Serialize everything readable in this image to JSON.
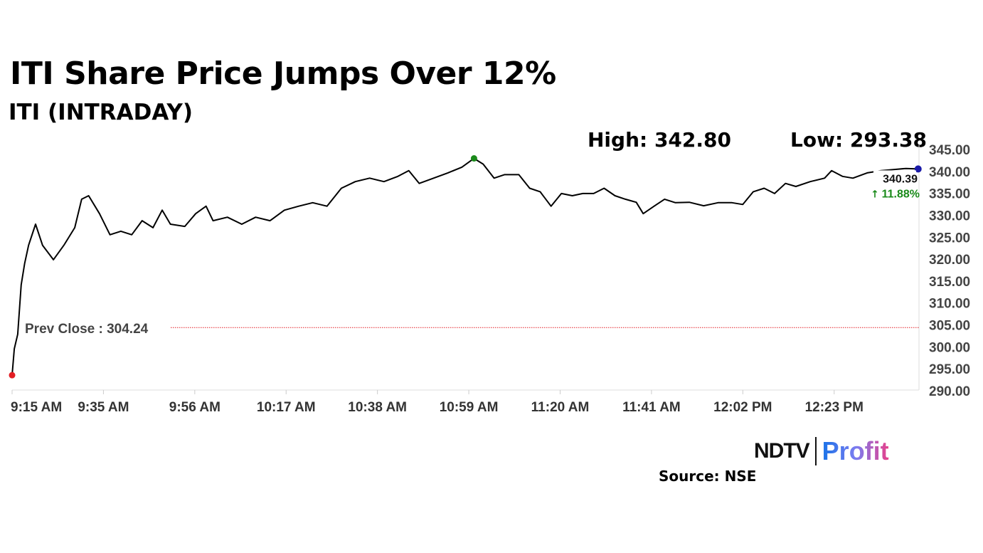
{
  "header": {
    "title": "ITI Share Price Jumps Over 12%",
    "subtitle": "ITI (INTRADAY)",
    "high_label": "High: 342.80",
    "low_label": "Low: 293.38"
  },
  "footer": {
    "source": "Source: NSE",
    "logo_ndtv": "NDTV",
    "logo_profit": "Profit"
  },
  "chart_data": {
    "type": "line",
    "title": "ITI (INTRADAY)",
    "x_unit": "minutes since 9:15 AM",
    "xlim": [
      0,
      208.5
    ],
    "ylim": [
      290,
      345
    ],
    "x_ticks": [
      0,
      21,
      42,
      63,
      84,
      105,
      126,
      147,
      168,
      189
    ],
    "x_tick_labels": [
      "9:15 AM",
      "9:35 AM",
      "9:56 AM",
      "10:17 AM",
      "10:38 AM",
      "10:59 AM",
      "11:20 AM",
      "11:41 AM",
      "12:02 PM",
      "12:23 PM"
    ],
    "y_ticks": [
      290,
      295,
      300,
      305,
      310,
      315,
      320,
      325,
      330,
      335,
      340,
      345
    ],
    "y_tick_labels": [
      "290.00",
      "295.00",
      "300.00",
      "305.00",
      "310.00",
      "315.00",
      "320.00",
      "325.00",
      "330.00",
      "335.00",
      "340.00",
      "345.00"
    ],
    "prev_close": {
      "value": 304.24,
      "label": "Prev Close : 304.24",
      "color": "#e31e24"
    },
    "high": {
      "x": 106.2,
      "value": 342.8,
      "color": "#1a8a1a"
    },
    "low": {
      "x": 0,
      "value": 293.38,
      "color": "#e31e24"
    },
    "last": {
      "x": 208.3,
      "value": 340.39,
      "label": "340.39",
      "change_label": "11.88%",
      "change_icon": "arrow-up",
      "change_color": "#1a8a1a",
      "dot_color": "#1a1aa8"
    },
    "series": [
      {
        "name": "ITI",
        "color": "#000000",
        "x": [
          0,
          0.5,
          1.3,
          2.1,
          2.9,
          3.8,
          5.4,
          7,
          9.5,
          11.9,
          14.4,
          16,
          17.6,
          20.1,
          22.5,
          25,
          27.5,
          29.9,
          32.4,
          34.5,
          36.4,
          39.7,
          42.2,
          44.6,
          46.2,
          49.5,
          52.8,
          56,
          59.3,
          62.6,
          65.9,
          69.1,
          72.4,
          75.7,
          78.9,
          82.2,
          85.5,
          88.7,
          91.2,
          93.6,
          96.9,
          100.2,
          103.4,
          106.2,
          108.3,
          110.8,
          113.2,
          116.5,
          119,
          121.4,
          123.9,
          126.3,
          128.8,
          131.2,
          133.7,
          136.1,
          138.6,
          141,
          143.5,
          145.1,
          147.6,
          150,
          152.5,
          155.7,
          159,
          162.3,
          165.5,
          168,
          170.4,
          172.9,
          175.3,
          177.8,
          180.2,
          183.5,
          186.8,
          188.4,
          190.9,
          193.3,
          196.6,
          199.8,
          203.1,
          205.5,
          208.3
        ],
        "y": [
          293.38,
          299.4,
          302.7,
          314,
          318.9,
          323,
          327.8,
          323,
          319.7,
          323,
          327,
          333.5,
          334.3,
          330.2,
          325.4,
          326.2,
          325.4,
          328.6,
          327,
          331,
          327.8,
          327.3,
          330.2,
          331.9,
          328.6,
          329.4,
          327.8,
          329.4,
          328.6,
          331,
          331.9,
          332.7,
          331.9,
          336,
          337.5,
          338.3,
          337.5,
          338.7,
          340,
          337.1,
          338.3,
          339.5,
          340.8,
          342.8,
          341.5,
          338.3,
          339.1,
          339.1,
          336,
          335.2,
          331.9,
          334.8,
          334.3,
          334.8,
          334.8,
          336,
          334.3,
          333.5,
          332.8,
          330.2,
          331.9,
          333.5,
          332.7,
          332.8,
          332,
          332.7,
          332.7,
          332.3,
          335.2,
          336,
          334.8,
          337.1,
          336.4,
          337.5,
          338.3,
          340,
          338.7,
          338.3,
          339.5,
          340,
          340.3,
          340.5,
          340.39
        ]
      }
    ]
  }
}
